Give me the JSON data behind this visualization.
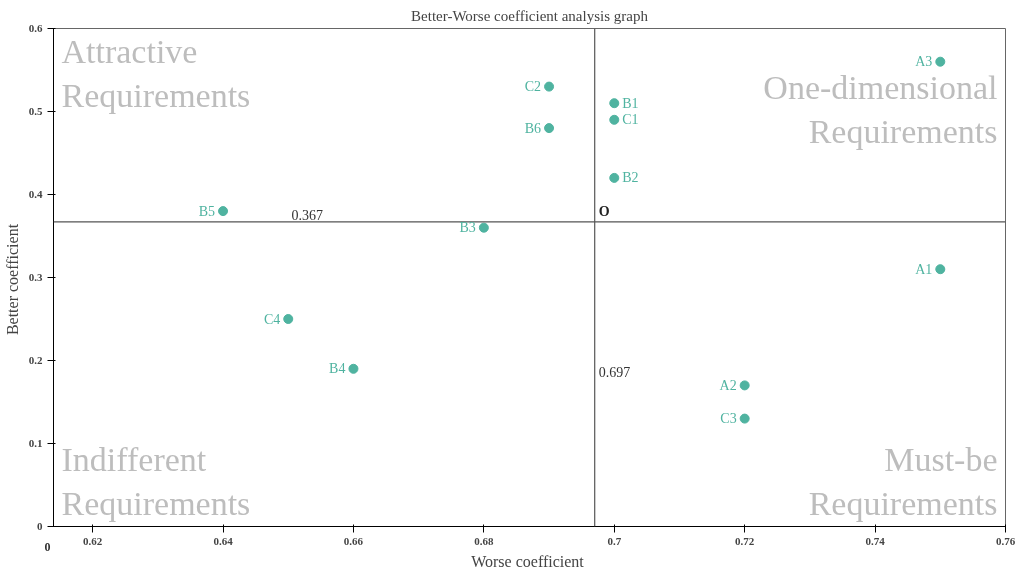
{
  "chart_data": {
    "type": "scatter",
    "title": "Better-Worse coefficient analysis graph",
    "xlabel": "Worse  coefficient",
    "ylabel": "Better  coefficient",
    "series": [
      {
        "color": "#4fb3a0",
        "x": [
          0.75,
          0.72,
          0.75,
          0.7,
          0.7,
          0.68,
          0.66,
          0.64,
          0.69,
          0.7,
          0.69,
          0.72,
          0.65
        ],
        "values": [
          0.31,
          0.17,
          0.56,
          0.51,
          0.42,
          0.36,
          0.19,
          0.38,
          0.48,
          0.49,
          0.53,
          0.13,
          0.25
        ]
      }
    ],
    "marker": "circle",
    "grid": false,
    "xlim": [
      0.614,
      0.76
    ],
    "xticks": [
      0.62,
      0.64,
      0.66,
      0.68,
      {
        "value": 0.7,
        "label": "0.7"
      },
      0.72,
      0.74,
      0.76
    ],
    "ylim": [
      0,
      0.6
    ],
    "yticks": [
      0,
      0.1,
      0.2,
      0.3,
      0.4,
      0.5,
      0.6
    ],
    "ref_lines": [
      {
        "axis": "y",
        "value": 0.367,
        "label": "0.367",
        "color": "#555555"
      },
      {
        "axis": "x",
        "value": 0.697,
        "label": "0.697",
        "color": "#555555"
      }
    ],
    "annotations": [
      "Attractive\nRequirements",
      "One-dimensional\nRequirements",
      "Indifferent\nRequirements",
      "Must-be\nRequirements",
      "0",
      {
        "text": "O",
        "x": 0.697,
        "y": 0.367
      },
      {
        "text": "A1",
        "x": 0.75,
        "y": 0.31
      },
      {
        "text": "A2",
        "x": 0.72,
        "y": 0.17
      },
      {
        "text": "A3",
        "x": 0.75,
        "y": 0.56
      },
      {
        "text": "B1",
        "x": 0.7,
        "y": 0.51
      },
      {
        "text": "B2",
        "x": 0.7,
        "y": 0.42
      },
      {
        "text": "B3",
        "x": 0.68,
        "y": 0.36
      },
      {
        "text": "B4",
        "x": 0.66,
        "y": 0.19
      },
      {
        "text": "B5",
        "x": 0.64,
        "y": 0.38
      },
      {
        "text": "B6",
        "x": 0.69,
        "y": 0.48
      },
      {
        "text": "C1",
        "x": 0.7,
        "y": 0.49
      },
      {
        "text": "C2",
        "x": 0.69,
        "y": 0.53
      },
      {
        "text": "C3",
        "x": 0.72,
        "y": 0.13
      },
      {
        "text": "C4",
        "x": 0.65,
        "y": 0.25
      }
    ]
  }
}
